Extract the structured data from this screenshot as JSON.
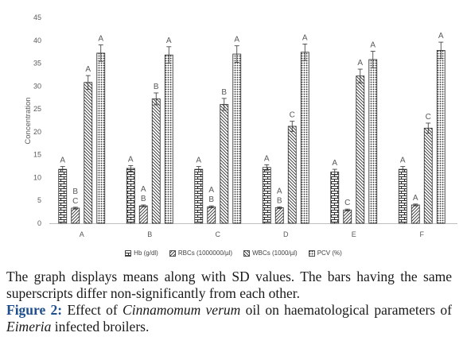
{
  "chart_data": {
    "type": "bar",
    "title": "",
    "xlabel": "",
    "ylabel": "Concentration",
    "ylim": [
      0,
      45
    ],
    "yticks": [
      0,
      5,
      10,
      15,
      20,
      25,
      30,
      35,
      40,
      45
    ],
    "grid": false,
    "legend_position": "bottom",
    "categories": [
      "A",
      "B",
      "C",
      "D",
      "E",
      "F"
    ],
    "series": [
      {
        "name": "Hb (g/dl)",
        "pattern": "brick",
        "values": [
          11.8,
          12.0,
          11.8,
          12.2,
          11.2,
          11.8
        ],
        "errors": [
          0.6,
          0.6,
          0.6,
          0.6,
          0.6,
          0.6
        ],
        "labels": [
          "A",
          "A",
          "A",
          "A",
          "A",
          "A"
        ]
      },
      {
        "name": "RBCs (1000000/µl)",
        "pattern": "diagonal",
        "values": [
          3.3,
          3.8,
          3.6,
          3.4,
          2.9,
          4.0
        ],
        "errors": [
          0.2,
          0.2,
          0.2,
          0.2,
          0.2,
          0.2
        ],
        "labels": [
          "B\nC",
          "A\nB",
          "A\nB",
          "A\nB",
          "C",
          "A"
        ]
      },
      {
        "name": "WBCs (1000/µl)",
        "pattern": "wave",
        "values": [
          30.8,
          27.2,
          26.0,
          21.2,
          32.2,
          20.8
        ],
        "errors": [
          1.5,
          1.3,
          1.3,
          1.1,
          1.5,
          1.1
        ],
        "labels": [
          "A",
          "B",
          "B",
          "C",
          "A",
          "C"
        ]
      },
      {
        "name": "PCV (%)",
        "pattern": "dots",
        "values": [
          37.2,
          36.8,
          37.0,
          37.4,
          35.8,
          37.8
        ],
        "errors": [
          1.8,
          1.8,
          1.8,
          1.8,
          1.8,
          1.8
        ],
        "labels": [
          "A",
          "A",
          "A",
          "A",
          "A",
          "A"
        ]
      }
    ]
  },
  "caption": {
    "line1": "The graph displays means along with SD values. The bars having the same superscripts differ non-significantly from each other.",
    "fig_label": "Figure 2:",
    "part1": " Effect of ",
    "species": "Cinnamomum verum",
    "part2": " oil on haematological parameters of ",
    "genus": "Eimeria",
    "part3": " infected broilers."
  }
}
